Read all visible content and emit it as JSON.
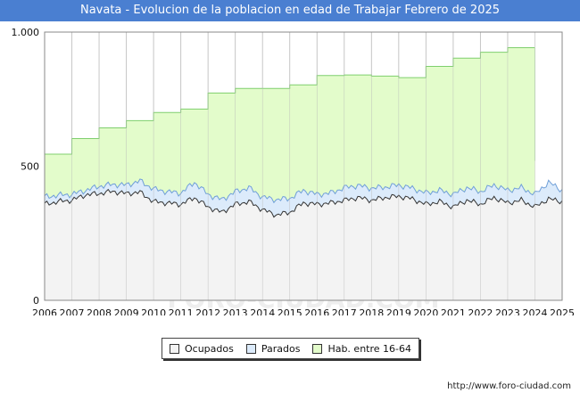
{
  "title": "Navata - Evolucion de la poblacion en edad de Trabajar Febrero de 2025",
  "source": "http://www.foro-ciudad.com",
  "watermark": "FORO-CIUDAD.COM",
  "colors": {
    "title_bg": "#4a7fd1",
    "hab_fill": "#e3fccb",
    "hab_line": "#7fcf6e",
    "parados_fill": "#dcebfb",
    "parados_line": "#6f9fd8",
    "ocupados_fill": "#f3f3f3",
    "ocupados_line": "#333333",
    "grid": "#d2d2d2"
  },
  "chart_data": {
    "type": "area",
    "title": "Navata - Evolucion de la poblacion en edad de Trabajar Febrero de 2025",
    "xlabel": "",
    "ylabel": "",
    "ylim": [
      0,
      1000
    ],
    "xlim": [
      2006,
      2025
    ],
    "y_ticks": [
      0,
      500,
      1000
    ],
    "y_tick_labels": [
      "0",
      "500",
      "1.000"
    ],
    "x_tick_labels": [
      "2006",
      "2007",
      "2008",
      "2009",
      "2010",
      "2011",
      "2012",
      "2013",
      "2014",
      "2015",
      "2016",
      "2017",
      "2018",
      "2019",
      "2020",
      "2021",
      "2022",
      "2023",
      "2024",
      "2025"
    ],
    "grid": true,
    "legend_position": "bottom",
    "series": [
      {
        "name": "Hab. entre 16-64",
        "years": [
          2006,
          2007,
          2008,
          2009,
          2010,
          2011,
          2012,
          2013,
          2014,
          2015,
          2016,
          2017,
          2018,
          2019,
          2020,
          2021,
          2022,
          2023
        ],
        "values": [
          545,
          603,
          643,
          670,
          700,
          713,
          773,
          790,
          790,
          803,
          838,
          840,
          836,
          830,
          872,
          903,
          925,
          942
        ]
      },
      {
        "name": "Parados",
        "anchors_x": [
          2006,
          2006.5,
          2007,
          2007.5,
          2008,
          2008.5,
          2009,
          2009.5,
          2010,
          2010.5,
          2011,
          2011.5,
          2012,
          2012.5,
          2013,
          2013.5,
          2014,
          2014.5,
          2015,
          2015.5,
          2016,
          2016.5,
          2017,
          2017.5,
          2018,
          2018.5,
          2019,
          2019.5,
          2020,
          2020.5,
          2021,
          2021.5,
          2022,
          2022.5,
          2023,
          2023.5,
          2024,
          2024.5,
          2025
        ],
        "anchors_y": [
          385,
          392,
          395,
          410,
          425,
          432,
          430,
          445,
          415,
          405,
          400,
          440,
          395,
          375,
          405,
          420,
          385,
          375,
          380,
          410,
          395,
          400,
          420,
          428,
          418,
          422,
          430,
          418,
          400,
          410,
          395,
          420,
          405,
          430,
          410,
          420,
          395,
          440,
          410
        ]
      },
      {
        "name": "Ocupados",
        "anchors_x": [
          2006,
          2006.5,
          2007,
          2007.5,
          2008,
          2008.5,
          2009,
          2009.5,
          2010,
          2010.5,
          2011,
          2011.5,
          2012,
          2012.5,
          2013,
          2013.5,
          2014,
          2014.5,
          2015,
          2015.5,
          2016,
          2016.5,
          2017,
          2017.5,
          2018,
          2018.5,
          2019,
          2019.5,
          2020,
          2020.5,
          2021,
          2021.5,
          2022,
          2022.5,
          2023,
          2023.5,
          2024,
          2024.5,
          2025
        ],
        "anchors_y": [
          360,
          370,
          375,
          395,
          400,
          408,
          400,
          405,
          370,
          365,
          360,
          385,
          350,
          330,
          360,
          370,
          340,
          320,
          330,
          365,
          360,
          365,
          375,
          385,
          375,
          385,
          390,
          380,
          360,
          370,
          350,
          375,
          360,
          385,
          365,
          375,
          350,
          380,
          370
        ]
      }
    ]
  },
  "legend": {
    "ocupados": "Ocupados",
    "parados": "Parados",
    "hab": "Hab. entre 16-64"
  }
}
